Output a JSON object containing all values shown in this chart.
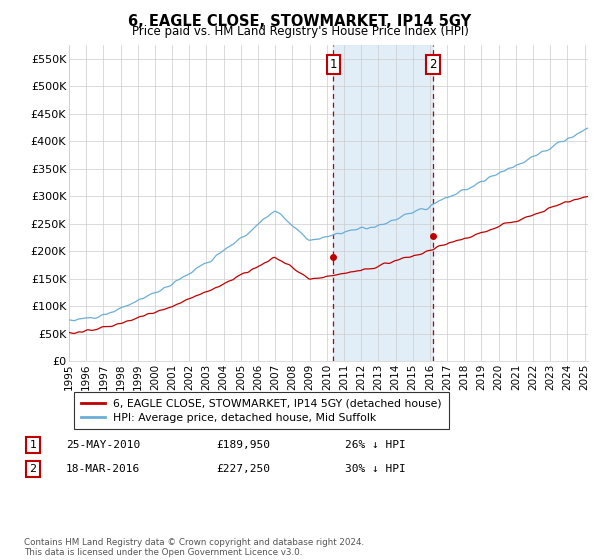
{
  "title": "6, EAGLE CLOSE, STOWMARKET, IP14 5GY",
  "subtitle": "Price paid vs. HM Land Registry's House Price Index (HPI)",
  "ylabel_ticks": [
    "£0",
    "£50K",
    "£100K",
    "£150K",
    "£200K",
    "£250K",
    "£300K",
    "£350K",
    "£400K",
    "£450K",
    "£500K",
    "£550K"
  ],
  "ytick_values": [
    0,
    50000,
    100000,
    150000,
    200000,
    250000,
    300000,
    350000,
    400000,
    450000,
    500000,
    550000
  ],
  "ylim": [
    0,
    575000
  ],
  "xlim_start": 1995.0,
  "xlim_end": 2025.2,
  "marker1_x": 2010.38,
  "marker1_y": 189950,
  "marker2_x": 2016.18,
  "marker2_y": 227250,
  "marker1_label": "1",
  "marker2_label": "2",
  "marker1_date": "25-MAY-2010",
  "marker1_price": "£189,950",
  "marker1_pct": "26% ↓ HPI",
  "marker2_date": "18-MAR-2016",
  "marker2_price": "£227,250",
  "marker2_pct": "30% ↓ HPI",
  "hpi_color": "#6baed6",
  "price_color": "#c00000",
  "marker_box_color": "#c00000",
  "shading_color": "#d6e8f5",
  "footnote": "Contains HM Land Registry data © Crown copyright and database right 2024.\nThis data is licensed under the Open Government Licence v3.0.",
  "legend_line1": "6, EAGLE CLOSE, STOWMARKET, IP14 5GY (detached house)",
  "legend_line2": "HPI: Average price, detached house, Mid Suffolk"
}
